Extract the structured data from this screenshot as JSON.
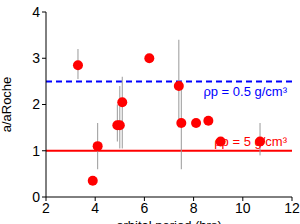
{
  "chart_data": {
    "type": "scatter",
    "x_label": "orbital period (hrs)",
    "y_label": "a/aRoche",
    "xlim": [
      2,
      12
    ],
    "xticks": [
      2,
      4,
      6,
      8,
      10,
      12
    ],
    "ylim": [
      0,
      4
    ],
    "yticks": [
      0,
      1,
      2,
      3,
      4
    ],
    "grid": false,
    "color": "#ff0000",
    "marker": "circle",
    "x": [
      3.3,
      3.9,
      4.1,
      4.9,
      5.0,
      5.1,
      6.2,
      7.4,
      7.5,
      8.1,
      8.6,
      9.1,
      10.7
    ],
    "values": [
      2.85,
      0.35,
      1.1,
      1.55,
      1.55,
      2.05,
      3.0,
      2.4,
      1.6,
      1.6,
      1.65,
      1.2,
      1.2
    ],
    "y_error": [
      [
        0.3,
        0.35
      ],
      null,
      [
        0.5,
        0.5
      ],
      [
        0.35,
        0.45
      ],
      [
        0.5,
        0.85
      ],
      [
        1.0,
        0.55
      ],
      null,
      [
        0.9,
        1.0
      ],
      [
        1.0,
        0.9
      ],
      null,
      null,
      null,
      [
        0.3,
        0.4
      ]
    ],
    "reference_lines": [
      {
        "y": 2.5,
        "color": "#0000ff",
        "line_style": "dashed",
        "label": "ρp = 0.5 g/cm³"
      },
      {
        "y": 1,
        "color": "#ff0000",
        "line_style": "solid",
        "label": "ρp = 5 g/cm³"
      }
    ]
  }
}
